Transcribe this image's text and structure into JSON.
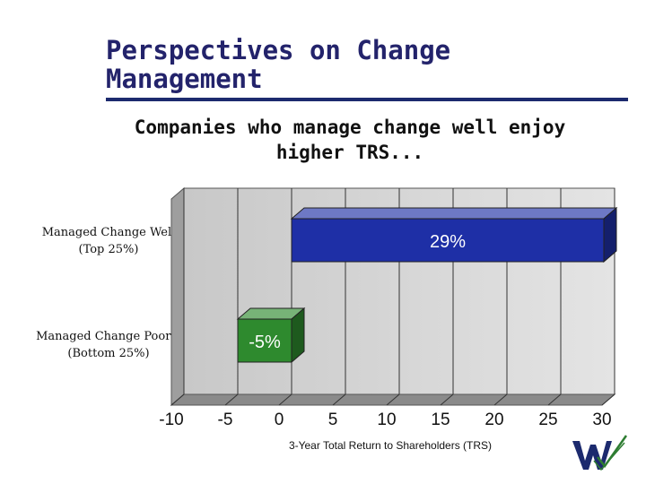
{
  "slide": {
    "title_lines": [
      "Perspectives on Change",
      "Management"
    ],
    "subtitle_lines": [
      "Companies who manage change well enjoy",
      "higher TRS..."
    ]
  },
  "chart_data": {
    "type": "bar",
    "orientation": "horizontal",
    "categories": [
      {
        "lines": [
          "Managed Change Well",
          "(Top 25%)"
        ]
      },
      {
        "lines": [
          "Managed Change Poorly",
          "(Bottom 25%)"
        ]
      }
    ],
    "values": [
      29,
      -5
    ],
    "data_labels": [
      "29%",
      "-5%"
    ],
    "bar_colors": [
      "#1e2fa6",
      "#2e8a2e"
    ],
    "xlabel": "3-Year Total Return to Shareholders (TRS)",
    "xlim": [
      -10,
      30
    ],
    "xticks": [
      -10,
      -5,
      0,
      5,
      10,
      15,
      20,
      25,
      30
    ],
    "grid": true,
    "three_d": true
  },
  "logo": {
    "colors": [
      "#1c2a6e",
      "#2e7d32"
    ]
  }
}
